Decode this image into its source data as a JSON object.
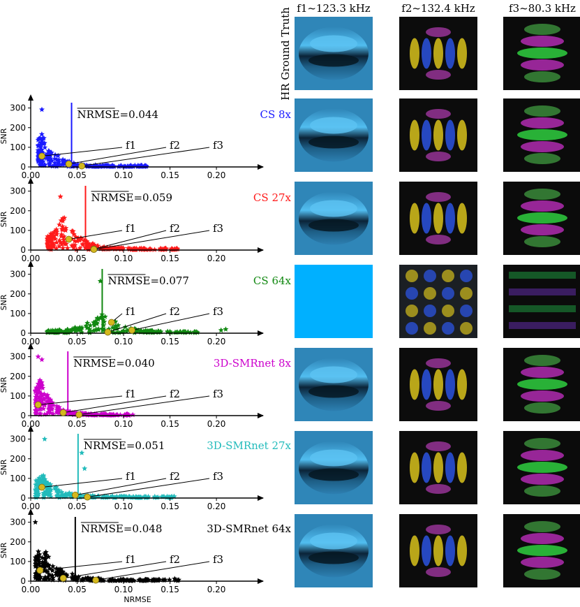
{
  "colors": {
    "axis": "#000000",
    "marker_point": "#d4b81e",
    "line": "#000000"
  },
  "columns": [
    {
      "label": "f1~123.3 kHz"
    },
    {
      "label": "f2~132.4 kHz"
    },
    {
      "label": "f3~80.3 kHz"
    }
  ],
  "row_header_gt": "HR Ground Truth",
  "chart_data": [
    {
      "type": "scatter",
      "method": "CS 8x",
      "color": "#1a1aff",
      "nrmse_text": "NRMSE=0.044",
      "nrmse_mean": 0.044,
      "xlim": [
        0,
        0.23
      ],
      "ylim": [
        0,
        320
      ],
      "xticks": [
        "0.00",
        "0.05",
        "0.10",
        "0.15",
        "0.20"
      ],
      "yticks": [
        "0",
        "100",
        "200",
        "300"
      ],
      "ylabel": "SNR",
      "xlabel": "",
      "points": [
        {
          "name": "f1",
          "x": 0.012,
          "y": 55
        },
        {
          "name": "f2",
          "x": 0.041,
          "y": 15
        },
        {
          "name": "f3",
          "x": 0.055,
          "y": 5
        }
      ],
      "cloud": {
        "x_min": 0.008,
        "x_max": 0.125,
        "peak": 200,
        "peak_x": 0.012,
        "outliers": [
          [
            0.012,
            292
          ]
        ]
      }
    },
    {
      "type": "scatter",
      "method": "CS 27x",
      "color": "#ff1a1a",
      "nrmse_text": "NRMSE=0.059",
      "nrmse_mean": 0.059,
      "xlim": [
        0,
        0.23
      ],
      "ylim": [
        0,
        320
      ],
      "xticks": [
        "0.00",
        "0.05",
        "0.10",
        "0.15",
        "0.20"
      ],
      "yticks": [
        "0",
        "100",
        "200",
        "300"
      ],
      "ylabel": "SNR",
      "xlabel": "",
      "points": [
        {
          "name": "f1",
          "x": 0.041,
          "y": 55
        },
        {
          "name": "f2",
          "x": 0.068,
          "y": 5
        },
        {
          "name": "f3",
          "x": 0.068,
          "y": 3
        }
      ],
      "cloud": {
        "x_min": 0.018,
        "x_max": 0.16,
        "peak": 200,
        "peak_x": 0.035,
        "outliers": [
          [
            0.032,
            272
          ]
        ]
      }
    },
    {
      "type": "scatter",
      "method": "CS 64x",
      "color": "#118811",
      "nrmse_text": "NRMSE=0.077",
      "nrmse_mean": 0.077,
      "xlim": [
        0,
        0.23
      ],
      "ylim": [
        0,
        320
      ],
      "xticks": [
        "0.00",
        "0.05",
        "0.10",
        "0.15",
        "0.20"
      ],
      "yticks": [
        "0",
        "100",
        "200",
        "300"
      ],
      "ylabel": "SNR",
      "xlabel": "",
      "points": [
        {
          "name": "f1",
          "x": 0.087,
          "y": 55
        },
        {
          "name": "f2",
          "x": 0.083,
          "y": 5
        },
        {
          "name": "f3",
          "x": 0.109,
          "y": 15
        }
      ],
      "cloud": {
        "x_min": 0.018,
        "x_max": 0.18,
        "peak": 120,
        "peak_x": 0.078,
        "outliers": [
          [
            0.075,
            265
          ],
          [
            0.205,
            15
          ],
          [
            0.21,
            20
          ]
        ]
      }
    },
    {
      "type": "scatter",
      "method": "3D-SMRnet 8x",
      "color": "#cc00cc",
      "nrmse_text": "NRMSE=0.040",
      "nrmse_mean": 0.04,
      "xlim": [
        0,
        0.23
      ],
      "ylim": [
        0,
        320
      ],
      "xticks": [
        "0.00",
        "0.05",
        "0.10",
        "0.15",
        "0.20"
      ],
      "yticks": [
        "0",
        "100",
        "200",
        "300"
      ],
      "ylabel": "SNR",
      "xlabel": "",
      "points": [
        {
          "name": "f1",
          "x": 0.008,
          "y": 55
        },
        {
          "name": "f2",
          "x": 0.035,
          "y": 15
        },
        {
          "name": "f3",
          "x": 0.052,
          "y": 5
        }
      ],
      "cloud": {
        "x_min": 0.005,
        "x_max": 0.11,
        "peak": 220,
        "peak_x": 0.01,
        "outliers": [
          [
            0.008,
            300
          ],
          [
            0.012,
            285
          ]
        ]
      }
    },
    {
      "type": "scatter",
      "method": "3D-SMRnet 27x",
      "color": "#22bbbb",
      "nrmse_text": "NRMSE=0.051",
      "nrmse_mean": 0.051,
      "xlim": [
        0,
        0.23
      ],
      "ylim": [
        0,
        320
      ],
      "xticks": [
        "0.00",
        "0.05",
        "0.10",
        "0.15",
        "0.20"
      ],
      "yticks": [
        "0",
        "100",
        "200",
        "300"
      ],
      "ylabel": "SNR",
      "xlabel": "",
      "points": [
        {
          "name": "f1",
          "x": 0.012,
          "y": 55
        },
        {
          "name": "f2",
          "x": 0.048,
          "y": 15
        },
        {
          "name": "f3",
          "x": 0.061,
          "y": 5
        }
      ],
      "cloud": {
        "x_min": 0.005,
        "x_max": 0.155,
        "peak": 140,
        "peak_x": 0.012,
        "outliers": [
          [
            0.015,
            300
          ],
          [
            0.055,
            230
          ],
          [
            0.058,
            150
          ]
        ]
      }
    },
    {
      "type": "scatter",
      "method": "3D-SMRnet 64x",
      "color": "#000000",
      "nrmse_text": "NRMSE=0.048",
      "nrmse_mean": 0.048,
      "xlim": [
        0,
        0.23
      ],
      "ylim": [
        0,
        320
      ],
      "xticks": [
        "0.00",
        "0.05",
        "0.10",
        "0.15",
        "0.20"
      ],
      "yticks": [
        "0",
        "100",
        "200",
        "300"
      ],
      "ylabel": "SNR",
      "xlabel": "NRMSE",
      "points": [
        {
          "name": "f1",
          "x": 0.01,
          "y": 55
        },
        {
          "name": "f2",
          "x": 0.035,
          "y": 15
        },
        {
          "name": "f3",
          "x": 0.07,
          "y": 5
        }
      ],
      "cloud": {
        "x_min": 0.005,
        "x_max": 0.16,
        "peak": 200,
        "peak_x": 0.012,
        "outliers": [
          [
            0.005,
            300
          ],
          [
            0.155,
            12
          ]
        ]
      }
    }
  ],
  "images": [
    {
      "row": "gt",
      "tiles": [
        "f1",
        "f2",
        "f3"
      ]
    }
  ]
}
